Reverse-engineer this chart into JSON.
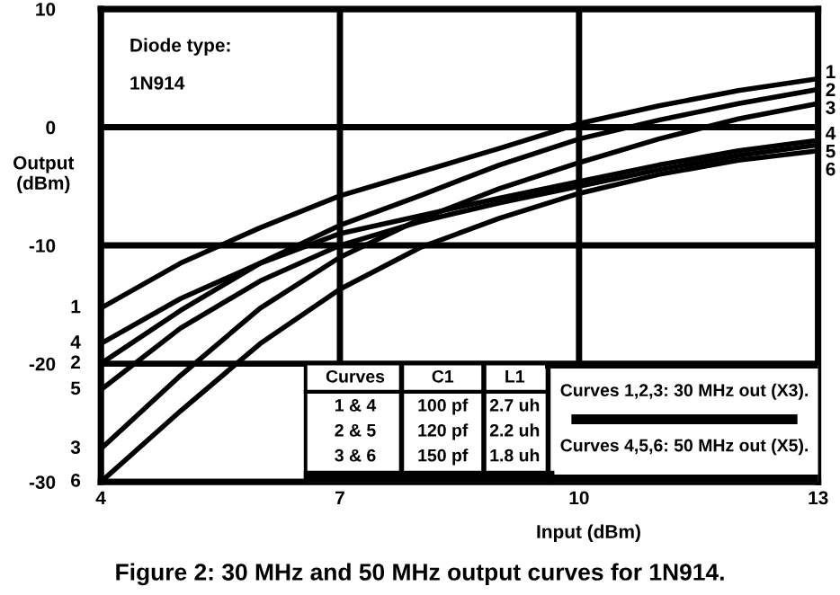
{
  "chart_data": {
    "type": "line",
    "title": "Figure 2: 30 MHz and 50 MHz output curves for 1N914.",
    "xlabel": "Input (dBm)",
    "ylabel": "Output\n(dBm)",
    "x": [
      4,
      5,
      6,
      7,
      8,
      9,
      10,
      11,
      12,
      13
    ],
    "series": [
      {
        "name": "1",
        "color": "#000000",
        "values": [
          -15.3,
          -11.5,
          -8.5,
          -5.8,
          -3.8,
          -1.8,
          0.3,
          1.8,
          3.1,
          4.1
        ]
      },
      {
        "name": "2",
        "color": "#000000",
        "values": [
          -20,
          -15.5,
          -11.5,
          -8.3,
          -5.8,
          -3.2,
          -1.0,
          0.6,
          2.0,
          3.2
        ]
      },
      {
        "name": "3",
        "color": "#000000",
        "values": [
          -27.2,
          -21,
          -15.3,
          -11,
          -7.8,
          -5.2,
          -3.0,
          -1.0,
          0.7,
          2.0
        ]
      },
      {
        "name": "4",
        "color": "#000000",
        "values": [
          -18.3,
          -14.5,
          -11.5,
          -9,
          -7.5,
          -6,
          -4.6,
          -3.2,
          -2,
          -1.1
        ]
      },
      {
        "name": "5",
        "color": "#000000",
        "values": [
          -22.2,
          -17,
          -13,
          -10,
          -8,
          -6.4,
          -5.0,
          -3.6,
          -2.4,
          -1.5
        ]
      },
      {
        "name": "6",
        "color": "#000000",
        "values": [
          -30,
          -24,
          -18.3,
          -13.7,
          -10.2,
          -7.7,
          -5.6,
          -4,
          -2.8,
          -2.0
        ]
      }
    ],
    "xlim": [
      4,
      13
    ],
    "xticks": [
      4,
      7,
      10,
      13
    ],
    "ylim": [
      -30,
      10
    ],
    "yticks": [
      -30,
      -20,
      -10,
      0,
      10
    ],
    "grid": true,
    "legend": false,
    "marker": "none",
    "line_style": "solid",
    "annotations": [
      "Diode type:",
      "1N914",
      "Curves",
      "C1",
      "L1",
      "1 & 4",
      "100 pf",
      "2.7 uh",
      "2 & 5",
      "120 pf",
      "2.2 uh",
      "3 & 6",
      "150 pf",
      "1.8 uh",
      "Curves 1,2,3: 30 MHz out (X3).",
      "Curves 4,5,6: 50 MHz out (X5)."
    ]
  }
}
